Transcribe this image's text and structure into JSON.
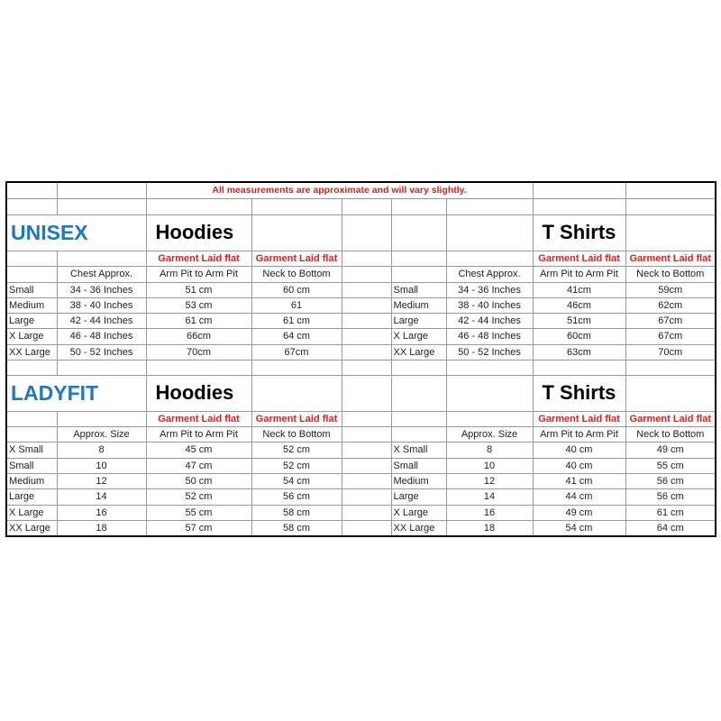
{
  "notice": "All measurements are approximate and will vary slightly.",
  "sections": [
    {
      "title": "UNISEX",
      "hoodies_title": "Hoodies",
      "tshirts_title": "T Shirts",
      "laid_flat_label": "Garment Laid flat",
      "approx_label": "Chest Approx.",
      "pit_label": "Arm Pit to Arm Pit",
      "neck_label": "Neck to Bottom",
      "rows": [
        {
          "size": "Small",
          "approx": "34 - 36 Inches",
          "hoodie_pit": "51 cm",
          "hoodie_neck": "60 cm",
          "tshirt_pit": "41cm",
          "tshirt_neck": "59cm"
        },
        {
          "size": "Medium",
          "approx": "38 - 40 Inches",
          "hoodie_pit": "53 cm",
          "hoodie_neck": "61",
          "tshirt_pit": "46cm",
          "tshirt_neck": "62cm"
        },
        {
          "size": "Large",
          "approx": "42 - 44 Inches",
          "hoodie_pit": "61 cm",
          "hoodie_neck": "61 cm",
          "tshirt_pit": "51cm",
          "tshirt_neck": "67cm"
        },
        {
          "size": "X Large",
          "approx": "46 - 48 Inches",
          "hoodie_pit": "66cm",
          "hoodie_neck": "64 cm",
          "tshirt_pit": "60cm",
          "tshirt_neck": "67cm"
        },
        {
          "size": "XX Large",
          "approx": "50 - 52 Inches",
          "hoodie_pit": "70cm",
          "hoodie_neck": "67cm",
          "tshirt_pit": "63cm",
          "tshirt_neck": "70cm"
        }
      ]
    },
    {
      "title": "LADYFIT",
      "hoodies_title": "Hoodies",
      "tshirts_title": "T Shirts",
      "laid_flat_label": "Garment Laid flat",
      "approx_label": "Approx. Size",
      "pit_label": "Arm Pit to Arm Pit",
      "neck_label": "Neck to Bottom",
      "rows": [
        {
          "size": "X Small",
          "approx": "8",
          "hoodie_pit": "45 cm",
          "hoodie_neck": "52 cm",
          "tshirt_pit": "40 cm",
          "tshirt_neck": "49 cm"
        },
        {
          "size": "Small",
          "approx": "10",
          "hoodie_pit": "47 cm",
          "hoodie_neck": "52 cm",
          "tshirt_pit": "40 cm",
          "tshirt_neck": "55 cm"
        },
        {
          "size": "Medium",
          "approx": "12",
          "hoodie_pit": "50 cm",
          "hoodie_neck": "54 cm",
          "tshirt_pit": "41 cm",
          "tshirt_neck": "56 cm"
        },
        {
          "size": "Large",
          "approx": "14",
          "hoodie_pit": "52 cm",
          "hoodie_neck": "56 cm",
          "tshirt_pit": "44 cm",
          "tshirt_neck": "56 cm"
        },
        {
          "size": "X Large",
          "approx": "16",
          "hoodie_pit": "55 cm",
          "hoodie_neck": "58 cm",
          "tshirt_pit": "49 cm",
          "tshirt_neck": "61 cm"
        },
        {
          "size": "XX Large",
          "approx": "18",
          "hoodie_pit": "57 cm",
          "hoodie_neck": "58 cm",
          "tshirt_pit": "54 cm",
          "tshirt_neck": "64 cm"
        }
      ]
    }
  ]
}
